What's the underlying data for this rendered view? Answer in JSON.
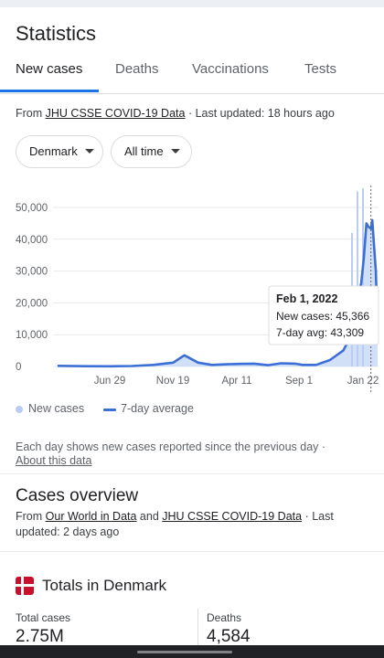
{
  "header": {
    "title": "Statistics"
  },
  "tabs": [
    {
      "label": "New cases",
      "active": true
    },
    {
      "label": "Deaths",
      "active": false
    },
    {
      "label": "Vaccinations",
      "active": false
    },
    {
      "label": "Tests",
      "active": false
    }
  ],
  "source": {
    "prefix": "From ",
    "link": "JHU CSSE COVID-19 Data",
    "suffix": " · Last updated: 18 hours ago"
  },
  "filters": {
    "location": {
      "label": "Denmark",
      "icon": "arrow-drop-down-icon"
    },
    "range": {
      "label": "All time",
      "icon": "arrow-drop-down-icon"
    }
  },
  "chart_data": {
    "type": "area",
    "y_ticks": [
      "50,000",
      "40,000",
      "30,000",
      "20,000",
      "10,000",
      "0"
    ],
    "x_ticks": [
      "Jun 29",
      "Nov 19",
      "Apr 11",
      "Sep 1",
      "Jan 22"
    ],
    "ylim": [
      0,
      55000
    ],
    "series": [
      {
        "name": "New cases",
        "style": "bars",
        "color": "#b9cdf3"
      },
      {
        "name": "7-day average",
        "style": "line",
        "color": "#3b6fd6"
      }
    ],
    "spikes": [
      {
        "date": "Jan 2022 (early)",
        "value": 42000
      },
      {
        "date": "Jan 2022 (mid)",
        "value": 55000
      },
      {
        "date": "Jan 2022 (late)",
        "value": 56000
      }
    ],
    "seven_day_average": [
      {
        "x": "2020-03-01",
        "y": 200
      },
      {
        "x": "2020-05-01",
        "y": 100
      },
      {
        "x": "2020-06-29",
        "y": 50
      },
      {
        "x": "2020-08-15",
        "y": 150
      },
      {
        "x": "2020-10-01",
        "y": 500
      },
      {
        "x": "2020-11-15",
        "y": 1200
      },
      {
        "x": "2020-12-10",
        "y": 3500
      },
      {
        "x": "2020-12-20",
        "y": 2800
      },
      {
        "x": "2021-01-10",
        "y": 1200
      },
      {
        "x": "2021-02-10",
        "y": 500
      },
      {
        "x": "2021-03-15",
        "y": 700
      },
      {
        "x": "2021-04-11",
        "y": 800
      },
      {
        "x": "2021-05-15",
        "y": 900
      },
      {
        "x": "2021-06-15",
        "y": 400
      },
      {
        "x": "2021-07-15",
        "y": 1000
      },
      {
        "x": "2021-08-15",
        "y": 900
      },
      {
        "x": "2021-09-01",
        "y": 500
      },
      {
        "x": "2021-10-01",
        "y": 500
      },
      {
        "x": "2021-11-01",
        "y": 2000
      },
      {
        "x": "2021-12-01",
        "y": 5000
      },
      {
        "x": "2021-12-20",
        "y": 10000
      },
      {
        "x": "2022-01-01",
        "y": 22000
      },
      {
        "x": "2022-01-10",
        "y": 26000
      },
      {
        "x": "2022-01-16",
        "y": 34000
      },
      {
        "x": "2022-01-22",
        "y": 45000
      },
      {
        "x": "2022-01-26",
        "y": 44000
      },
      {
        "x": "2022-02-01",
        "y": 43309
      },
      {
        "x": "2022-02-04",
        "y": 46000
      },
      {
        "x": "2022-02-08",
        "y": 38000
      },
      {
        "x": "2022-02-12",
        "y": 30000
      },
      {
        "x": "2022-02-16",
        "y": 10000
      }
    ],
    "tooltip": {
      "date": "Feb 1, 2022",
      "new_cases": "New cases: 45,366",
      "avg": "7-day avg: 43,309"
    }
  },
  "legend": {
    "new_cases": "New cases",
    "avg": "7-day average"
  },
  "note": {
    "text": "Each day shows new cases reported since the previous day  ·",
    "link": "About this data"
  },
  "overview": {
    "title": "Cases overview",
    "prefix": "From ",
    "link1": "Our World in Data",
    "middle": " and ",
    "link2": "JHU CSSE COVID-19 Data",
    "suffix": " · Last updated: 2 days ago"
  },
  "totals": {
    "title": "Totals in Denmark",
    "total_cases_label": "Total cases",
    "total_cases_value": "2.75M",
    "deaths_label": "Deaths",
    "deaths_value": "4,584",
    "flag_colors": {
      "field": "#c8102e",
      "cross": "#ffffff"
    }
  }
}
